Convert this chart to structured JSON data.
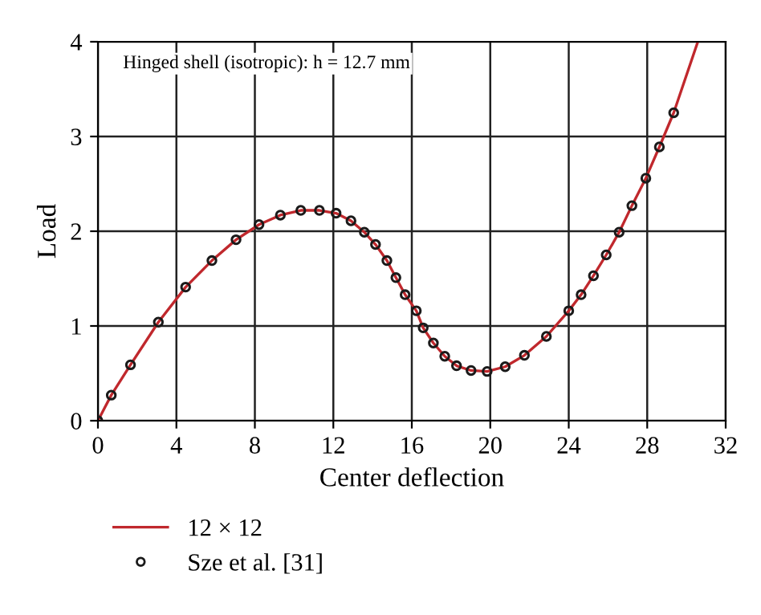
{
  "chart_data": {
    "type": "line",
    "xlabel": "Center deflection",
    "ylabel": "Load",
    "annotations": [
      "Hinged shell (isotropic): h = 12.7 mm"
    ],
    "xlim": [
      0,
      32
    ],
    "ylim": [
      0,
      4
    ],
    "xticks": [
      0,
      4,
      8,
      12,
      16,
      20,
      24,
      28,
      32
    ],
    "yticks": [
      0,
      1,
      2,
      3,
      4
    ],
    "grid": true,
    "legend": "bottom",
    "series": [
      {
        "name": "12 × 12",
        "color": "#c0282d",
        "marker": "none",
        "line_style": "solid",
        "x": [
          0,
          0.68,
          1.66,
          3.08,
          4.47,
          5.81,
          7.04,
          8.21,
          9.3,
          10.34,
          11.29,
          12.14,
          12.9,
          13.58,
          14.15,
          14.73,
          15.19,
          15.66,
          16.23,
          16.58,
          17.1,
          17.68,
          18.28,
          19.02,
          19.84,
          20.76,
          21.74,
          22.86,
          24.0,
          24.63,
          25.26,
          25.91,
          26.57,
          27.22,
          27.93,
          28.62,
          29.35,
          30.58
        ],
        "values": [
          0,
          0.27,
          0.59,
          1.04,
          1.41,
          1.69,
          1.91,
          2.07,
          2.17,
          2.22,
          2.22,
          2.19,
          2.11,
          1.99,
          1.86,
          1.69,
          1.51,
          1.33,
          1.16,
          0.98,
          0.82,
          0.68,
          0.58,
          0.53,
          0.52,
          0.57,
          0.69,
          0.89,
          1.16,
          1.33,
          1.53,
          1.75,
          1.99,
          2.27,
          2.56,
          2.89,
          3.25,
          4.0
        ]
      },
      {
        "name": "Sze et al. [31]",
        "type": "scatter",
        "color": "#1a1a1a",
        "marker": "circle",
        "x": [
          0,
          0.68,
          1.66,
          3.08,
          4.47,
          5.81,
          7.04,
          8.21,
          9.3,
          10.34,
          11.29,
          12.14,
          12.9,
          13.58,
          14.15,
          14.73,
          15.19,
          15.66,
          16.23,
          16.58,
          17.1,
          17.68,
          18.28,
          19.02,
          19.84,
          20.76,
          21.74,
          22.86,
          24.0,
          24.63,
          25.26,
          25.91,
          26.57,
          27.22,
          27.93,
          28.62,
          29.35
        ],
        "values": [
          0,
          0.27,
          0.59,
          1.04,
          1.41,
          1.69,
          1.91,
          2.07,
          2.17,
          2.22,
          2.22,
          2.19,
          2.11,
          1.99,
          1.86,
          1.69,
          1.51,
          1.33,
          1.16,
          0.98,
          0.82,
          0.68,
          0.58,
          0.53,
          0.52,
          0.57,
          0.69,
          0.89,
          1.16,
          1.33,
          1.53,
          1.75,
          1.99,
          2.27,
          2.56,
          2.89,
          3.25
        ]
      }
    ]
  }
}
